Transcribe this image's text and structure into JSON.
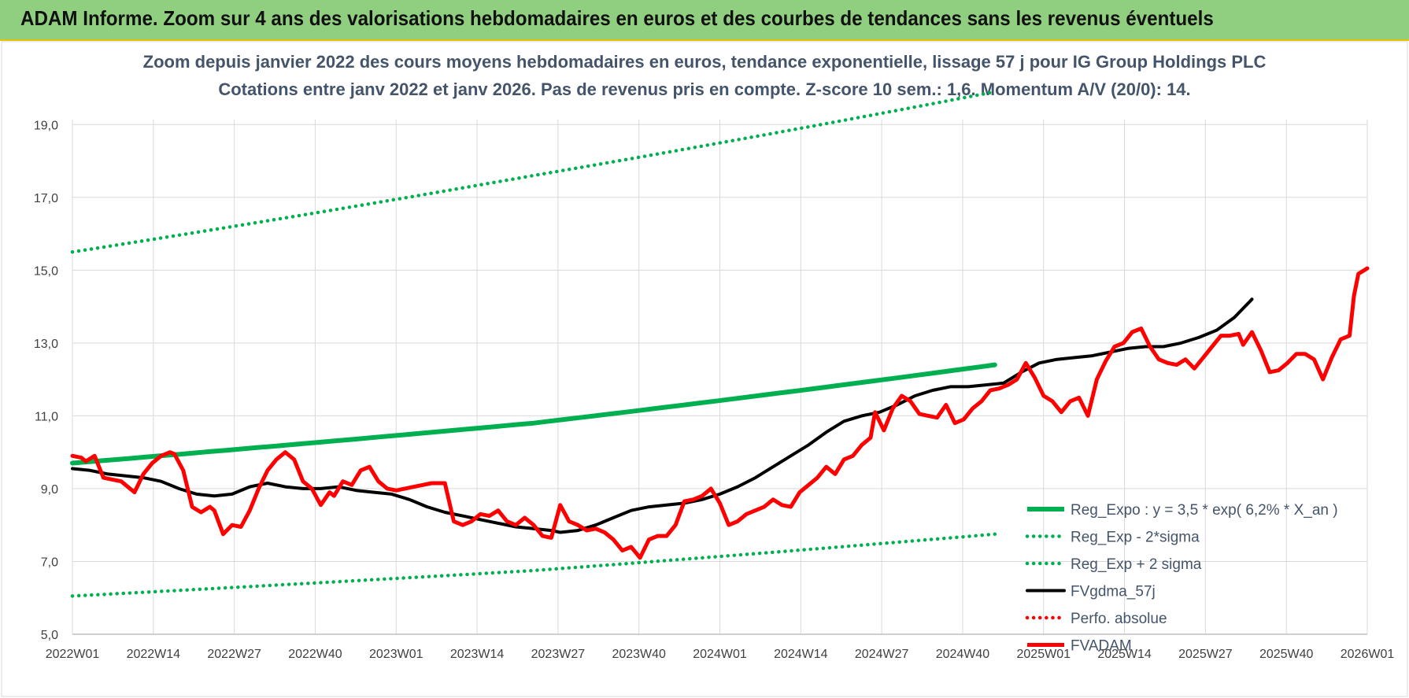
{
  "banner": {
    "title": "ADAM Informe. Zoom sur 4 ans des valorisations hebdomadaires en euros et des courbes de tendances sans les revenus éventuels"
  },
  "colors": {
    "green": "#00b050",
    "black": "#000000",
    "red": "#ff0000",
    "banner": "#8fcf7f"
  },
  "chart_data": {
    "type": "line",
    "title": "Zoom depuis janvier 2022 des cours moyens hebdomadaires en euros, tendance exponentielle, lissage 57 j pour IG Group Holdings PLC",
    "subtitle": "Cotations entre janv 2022 et janv 2026. Pas de revenus pris en compte. Z-score 10 sem.: 1,6. Momentum A/V (20/0): 14.",
    "xlabel": "",
    "ylabel": "",
    "x_ticks": [
      "2022W01",
      "2022W14",
      "2022W27",
      "2022W40",
      "2023W01",
      "2023W14",
      "2023W27",
      "2023W40",
      "2024W01",
      "2024W14",
      "2024W27",
      "2024W40",
      "2025W01",
      "2025W14",
      "2025W27",
      "2025W40",
      "2026W01"
    ],
    "y_ticks": [
      "5,0",
      "7,0",
      "9,0",
      "11,0",
      "13,0",
      "15,0",
      "17,0",
      "19,0"
    ],
    "ylim": [
      5,
      20
    ],
    "grid": true,
    "legend_position": "right",
    "series": [
      {
        "name": "Reg_Expo : y = 3,5 * exp( 6,2% *  X_an )",
        "style": "solid-thick",
        "color": "#00b050",
        "points": [
          [
            0,
            9.7
          ],
          [
            104,
            10.8
          ],
          [
            208,
            12.4
          ]
        ]
      },
      {
        "name": "Reg_Exp - 2*sigma",
        "style": "dotted",
        "color": "#00b050",
        "points": [
          [
            0,
            6.05
          ],
          [
            104,
            6.75
          ],
          [
            208,
            7.75
          ]
        ]
      },
      {
        "name": "Reg_Exp + 2 sigma",
        "style": "dotted",
        "color": "#00b050",
        "points": [
          [
            0,
            15.5
          ],
          [
            104,
            17.6
          ],
          [
            208,
            19.9
          ]
        ]
      },
      {
        "name": "FVgdma_57j",
        "style": "solid",
        "color": "#000000",
        "points": [
          [
            0,
            9.55
          ],
          [
            4,
            9.5
          ],
          [
            8,
            9.4
          ],
          [
            12,
            9.35
          ],
          [
            16,
            9.3
          ],
          [
            20,
            9.2
          ],
          [
            24,
            9.0
          ],
          [
            28,
            8.85
          ],
          [
            32,
            8.8
          ],
          [
            36,
            8.85
          ],
          [
            40,
            9.05
          ],
          [
            44,
            9.15
          ],
          [
            48,
            9.05
          ],
          [
            52,
            9.0
          ],
          [
            56,
            9.0
          ],
          [
            60,
            9.05
          ],
          [
            64,
            8.95
          ],
          [
            68,
            8.9
          ],
          [
            72,
            8.85
          ],
          [
            76,
            8.7
          ],
          [
            80,
            8.5
          ],
          [
            84,
            8.35
          ],
          [
            88,
            8.25
          ],
          [
            92,
            8.15
          ],
          [
            96,
            8.05
          ],
          [
            100,
            7.95
          ],
          [
            104,
            7.9
          ],
          [
            108,
            7.85
          ],
          [
            110,
            7.8
          ],
          [
            114,
            7.85
          ],
          [
            118,
            8.0
          ],
          [
            122,
            8.2
          ],
          [
            126,
            8.4
          ],
          [
            130,
            8.5
          ],
          [
            134,
            8.55
          ],
          [
            138,
            8.6
          ],
          [
            142,
            8.7
          ],
          [
            146,
            8.85
          ],
          [
            150,
            9.05
          ],
          [
            154,
            9.3
          ],
          [
            158,
            9.6
          ],
          [
            162,
            9.9
          ],
          [
            166,
            10.2
          ],
          [
            170,
            10.55
          ],
          [
            174,
            10.85
          ],
          [
            178,
            11.0
          ],
          [
            182,
            11.1
          ],
          [
            186,
            11.3
          ],
          [
            190,
            11.55
          ],
          [
            194,
            11.7
          ],
          [
            198,
            11.8
          ],
          [
            202,
            11.8
          ],
          [
            206,
            11.85
          ],
          [
            210,
            11.9
          ],
          [
            214,
            12.2
          ],
          [
            218,
            12.45
          ],
          [
            222,
            12.55
          ],
          [
            226,
            12.6
          ],
          [
            230,
            12.65
          ],
          [
            234,
            12.75
          ],
          [
            238,
            12.85
          ],
          [
            242,
            12.9
          ],
          [
            246,
            12.9
          ],
          [
            250,
            13.0
          ],
          [
            254,
            13.15
          ],
          [
            258,
            13.35
          ],
          [
            262,
            13.7
          ],
          [
            266,
            14.2
          ]
        ]
      },
      {
        "name": "Perfo. absolue",
        "style": "dotted",
        "color": "#ff0000",
        "points": []
      },
      {
        "name": "FVADAM",
        "style": "solid-thick",
        "color": "#ff0000",
        "points": [
          [
            0,
            9.9
          ],
          [
            2,
            9.85
          ],
          [
            3,
            9.75
          ],
          [
            5,
            9.9
          ],
          [
            7,
            9.3
          ],
          [
            9,
            9.25
          ],
          [
            11,
            9.2
          ],
          [
            13,
            9.0
          ],
          [
            14,
            8.9
          ],
          [
            16,
            9.4
          ],
          [
            18,
            9.7
          ],
          [
            20,
            9.9
          ],
          [
            22,
            10.0
          ],
          [
            23,
            9.95
          ],
          [
            25,
            9.5
          ],
          [
            27,
            8.5
          ],
          [
            29,
            8.35
          ],
          [
            31,
            8.5
          ],
          [
            32,
            8.4
          ],
          [
            34,
            7.75
          ],
          [
            36,
            8.0
          ],
          [
            38,
            7.95
          ],
          [
            40,
            8.4
          ],
          [
            42,
            9.0
          ],
          [
            44,
            9.5
          ],
          [
            46,
            9.8
          ],
          [
            48,
            10.0
          ],
          [
            50,
            9.8
          ],
          [
            52,
            9.2
          ],
          [
            54,
            9.0
          ],
          [
            56,
            8.55
          ],
          [
            58,
            8.9
          ],
          [
            59,
            8.8
          ],
          [
            61,
            9.2
          ],
          [
            63,
            9.1
          ],
          [
            65,
            9.5
          ],
          [
            67,
            9.6
          ],
          [
            69,
            9.2
          ],
          [
            71,
            9.0
          ],
          [
            73,
            8.95
          ],
          [
            75,
            9.0
          ],
          [
            77,
            9.05
          ],
          [
            79,
            9.1
          ],
          [
            81,
            9.15
          ],
          [
            84,
            9.15
          ],
          [
            86,
            8.1
          ],
          [
            88,
            8.0
          ],
          [
            90,
            8.1
          ],
          [
            92,
            8.3
          ],
          [
            94,
            8.25
          ],
          [
            96,
            8.4
          ],
          [
            98,
            8.1
          ],
          [
            100,
            8.0
          ],
          [
            102,
            8.2
          ],
          [
            104,
            8.0
          ],
          [
            106,
            7.7
          ],
          [
            108,
            7.65
          ],
          [
            110,
            8.55
          ],
          [
            112,
            8.1
          ],
          [
            114,
            8.0
          ],
          [
            116,
            7.85
          ],
          [
            118,
            7.9
          ],
          [
            120,
            7.8
          ],
          [
            122,
            7.6
          ],
          [
            124,
            7.3
          ],
          [
            126,
            7.4
          ],
          [
            128,
            7.1
          ],
          [
            130,
            7.6
          ],
          [
            132,
            7.7
          ],
          [
            134,
            7.7
          ],
          [
            136,
            8.0
          ],
          [
            138,
            8.65
          ],
          [
            140,
            8.7
          ],
          [
            142,
            8.8
          ],
          [
            144,
            9.0
          ],
          [
            146,
            8.6
          ],
          [
            148,
            8.0
          ],
          [
            150,
            8.1
          ],
          [
            152,
            8.3
          ],
          [
            154,
            8.4
          ],
          [
            156,
            8.5
          ],
          [
            158,
            8.7
          ],
          [
            160,
            8.55
          ],
          [
            162,
            8.5
          ],
          [
            164,
            8.9
          ],
          [
            166,
            9.1
          ],
          [
            168,
            9.3
          ],
          [
            170,
            9.6
          ],
          [
            172,
            9.4
          ],
          [
            174,
            9.8
          ],
          [
            176,
            9.9
          ],
          [
            178,
            10.2
          ],
          [
            180,
            10.4
          ],
          [
            181,
            11.1
          ],
          [
            183,
            10.6
          ],
          [
            185,
            11.2
          ],
          [
            187,
            11.55
          ],
          [
            189,
            11.4
          ],
          [
            191,
            11.05
          ],
          [
            193,
            11.0
          ],
          [
            195,
            10.95
          ],
          [
            197,
            11.3
          ],
          [
            199,
            10.8
          ],
          [
            201,
            10.9
          ],
          [
            203,
            11.2
          ],
          [
            205,
            11.4
          ],
          [
            207,
            11.7
          ],
          [
            209,
            11.75
          ],
          [
            211,
            11.85
          ],
          [
            213,
            12.0
          ],
          [
            215,
            12.45
          ],
          [
            217,
            12.05
          ],
          [
            219,
            11.55
          ],
          [
            221,
            11.4
          ],
          [
            223,
            11.1
          ],
          [
            225,
            11.4
          ],
          [
            227,
            11.5
          ],
          [
            229,
            11.0
          ],
          [
            231,
            12.0
          ],
          [
            233,
            12.5
          ],
          [
            235,
            12.9
          ],
          [
            237,
            13.0
          ],
          [
            239,
            13.3
          ],
          [
            241,
            13.4
          ],
          [
            243,
            12.9
          ],
          [
            245,
            12.55
          ],
          [
            247,
            12.45
          ],
          [
            249,
            12.4
          ],
          [
            251,
            12.55
          ],
          [
            253,
            12.3
          ],
          [
            255,
            12.6
          ],
          [
            257,
            12.9
          ],
          [
            259,
            13.2
          ],
          [
            261,
            13.2
          ],
          [
            263,
            13.25
          ],
          [
            264,
            12.95
          ],
          [
            266,
            13.3
          ],
          [
            268,
            12.8
          ],
          [
            270,
            12.2
          ],
          [
            272,
            12.25
          ],
          [
            274,
            12.45
          ],
          [
            276,
            12.7
          ],
          [
            278,
            12.7
          ],
          [
            280,
            12.55
          ],
          [
            282,
            12.0
          ],
          [
            284,
            12.6
          ],
          [
            286,
            13.1
          ],
          [
            288,
            13.2
          ],
          [
            289,
            14.3
          ],
          [
            290,
            14.9
          ],
          [
            292,
            15.05
          ]
        ]
      }
    ],
    "x_max": 292
  }
}
